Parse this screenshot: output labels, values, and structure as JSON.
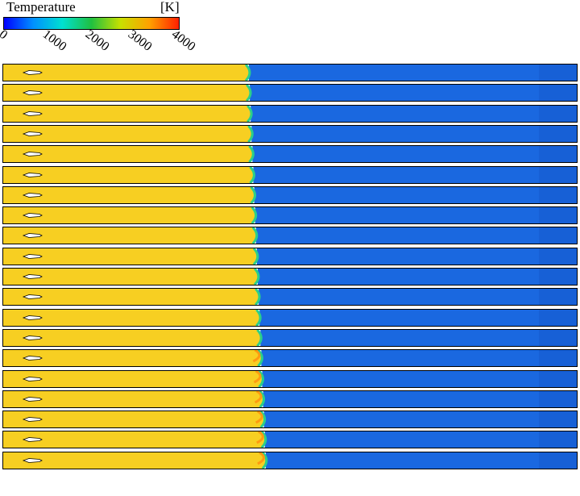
{
  "legend": {
    "title": "Temperature",
    "unit": "[K]",
    "min": 0,
    "max": 4000,
    "ticks": [
      "0",
      "1000",
      "2000",
      "3000",
      "4000"
    ],
    "gradient_colors": [
      "#0000ff",
      "#0090ff",
      "#00e0d0",
      "#20c040",
      "#c8e000",
      "#ffa000",
      "#ff2000"
    ]
  },
  "panels": {
    "count": 20,
    "burned_color": "#f7cf22",
    "unburned_color": "#1a68e0",
    "flame_front_color": "#2bcf8a",
    "hot_spot_color": "#ff9a10",
    "inlet_marker_color": "#ffffff"
  }
}
